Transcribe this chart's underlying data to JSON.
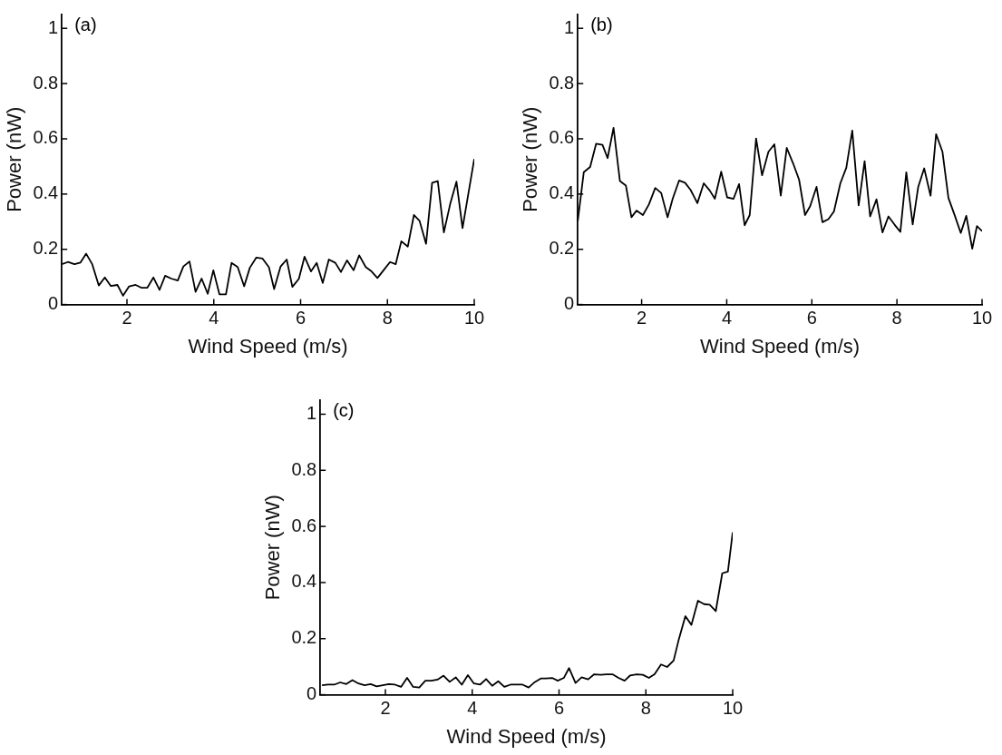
{
  "chart_data": [
    {
      "type": "line",
      "xlabel": "Wind Speed (m/s)",
      "ylabel": "Power (nW)",
      "annotations": [
        "(a)"
      ],
      "color": "#000000",
      "marker": "none",
      "grid": false,
      "legend": false,
      "xlim": [
        0.5,
        10
      ],
      "ylim": [
        0,
        1.05
      ],
      "xticks": [
        2,
        4,
        6,
        8,
        10
      ],
      "yticks": [
        0,
        0.2,
        0.4,
        0.6,
        0.8,
        1
      ],
      "x": [
        0.5,
        0.64,
        0.79,
        0.93,
        1.06,
        1.2,
        1.35,
        1.49,
        1.63,
        1.78,
        1.91,
        2.05,
        2.2,
        2.33,
        2.47,
        2.61,
        2.75,
        2.88,
        3.02,
        3.17,
        3.3,
        3.44,
        3.58,
        3.72,
        3.86,
        3.99,
        4.13,
        4.28,
        4.41,
        4.55,
        4.7,
        4.83,
        4.98,
        5.12,
        5.27,
        5.39,
        5.54,
        5.68,
        5.81,
        5.96,
        6.09,
        6.24,
        6.37,
        6.51,
        6.65,
        6.8,
        6.93,
        7.07,
        7.22,
        7.35,
        7.5,
        7.62,
        7.77,
        7.91,
        8.06,
        8.19,
        8.32,
        8.47,
        8.61,
        8.74,
        8.89,
        9.03,
        9.16,
        9.3,
        9.45,
        9.59,
        9.73,
        10
      ],
      "values": [
        0.146,
        0.154,
        0.146,
        0.152,
        0.184,
        0.146,
        0.069,
        0.098,
        0.067,
        0.071,
        0.032,
        0.066,
        0.071,
        0.061,
        0.061,
        0.098,
        0.053,
        0.104,
        0.094,
        0.087,
        0.138,
        0.156,
        0.046,
        0.094,
        0.039,
        0.124,
        0.037,
        0.037,
        0.151,
        0.136,
        0.066,
        0.133,
        0.17,
        0.167,
        0.135,
        0.056,
        0.138,
        0.163,
        0.064,
        0.093,
        0.173,
        0.12,
        0.151,
        0.078,
        0.163,
        0.151,
        0.118,
        0.16,
        0.124,
        0.178,
        0.136,
        0.122,
        0.096,
        0.124,
        0.154,
        0.146,
        0.229,
        0.21,
        0.324,
        0.303,
        0.22,
        0.441,
        0.447,
        0.261,
        0.367,
        0.445,
        0.277,
        0.527
      ]
    },
    {
      "type": "line",
      "xlabel": "Wind Speed (m/s)",
      "ylabel": "Power (nW)",
      "annotations": [
        "(b)"
      ],
      "color": "#000000",
      "marker": "none",
      "grid": false,
      "legend": false,
      "xlim": [
        0.5,
        10
      ],
      "ylim": [
        0,
        1.05
      ],
      "xticks": [
        2,
        4,
        6,
        8,
        10
      ],
      "yticks": [
        0,
        0.2,
        0.4,
        0.6,
        0.8,
        1
      ],
      "x": [
        0.5,
        0.64,
        0.79,
        0.93,
        1.08,
        1.2,
        1.34,
        1.49,
        1.63,
        1.76,
        1.88,
        2.03,
        2.17,
        2.32,
        2.46,
        2.61,
        2.73,
        2.88,
        3.02,
        3.15,
        3.31,
        3.46,
        3.6,
        3.72,
        3.87,
        4.01,
        4.16,
        4.29,
        4.42,
        4.54,
        4.69,
        4.83,
        4.98,
        5.12,
        5.27,
        5.41,
        5.56,
        5.7,
        5.84,
        5.96,
        6.11,
        6.25,
        6.39,
        6.52,
        6.67,
        6.81,
        6.95,
        7.1,
        7.24,
        7.37,
        7.52,
        7.66,
        7.8,
        7.94,
        8.08,
        8.22,
        8.37,
        8.5,
        8.64,
        8.79,
        8.92,
        9.07,
        9.21,
        9.36,
        9.5,
        9.63,
        9.77,
        9.88,
        10
      ],
      "values": [
        0.303,
        0.479,
        0.498,
        0.582,
        0.578,
        0.53,
        0.64,
        0.447,
        0.431,
        0.316,
        0.34,
        0.324,
        0.362,
        0.422,
        0.404,
        0.316,
        0.383,
        0.449,
        0.441,
        0.415,
        0.367,
        0.439,
        0.413,
        0.383,
        0.481,
        0.388,
        0.383,
        0.436,
        0.287,
        0.324,
        0.601,
        0.468,
        0.553,
        0.58,
        0.394,
        0.567,
        0.511,
        0.452,
        0.324,
        0.356,
        0.426,
        0.298,
        0.309,
        0.337,
        0.439,
        0.495,
        0.63,
        0.359,
        0.519,
        0.319,
        0.381,
        0.261,
        0.319,
        0.29,
        0.263,
        0.479,
        0.29,
        0.426,
        0.493,
        0.394,
        0.617,
        0.553,
        0.386,
        0.322,
        0.259,
        0.321,
        0.202,
        0.284,
        0.266
      ]
    },
    {
      "type": "line",
      "xlabel": "Wind Speed (m/s)",
      "ylabel": "Power (nW)",
      "annotations": [
        "(c)"
      ],
      "color": "#000000",
      "marker": "none",
      "grid": false,
      "legend": false,
      "xlim": [
        0.5,
        10
      ],
      "ylim": [
        0,
        1.05
      ],
      "xticks": [
        2,
        4,
        6,
        8,
        10
      ],
      "yticks": [
        0,
        0.2,
        0.4,
        0.6,
        0.8,
        1
      ],
      "x": [
        0.54,
        0.68,
        0.82,
        0.96,
        1.1,
        1.24,
        1.38,
        1.52,
        1.66,
        1.8,
        1.94,
        2.08,
        2.22,
        2.36,
        2.5,
        2.64,
        2.78,
        2.92,
        3.06,
        3.2,
        3.34,
        3.48,
        3.62,
        3.76,
        3.9,
        4.04,
        4.18,
        4.32,
        4.46,
        4.6,
        4.74,
        4.88,
        5.02,
        5.16,
        5.3,
        5.44,
        5.58,
        5.7,
        5.84,
        5.97,
        6.11,
        6.23,
        6.38,
        6.52,
        6.67,
        6.81,
        6.96,
        7.09,
        7.23,
        7.37,
        7.51,
        7.64,
        7.79,
        7.93,
        8.07,
        8.2,
        8.35,
        8.49,
        8.64,
        8.76,
        8.91,
        9.05,
        9.2,
        9.34,
        9.47,
        9.61,
        9.76,
        9.89,
        10
      ],
      "values": [
        0.034,
        0.036,
        0.036,
        0.044,
        0.038,
        0.052,
        0.04,
        0.034,
        0.038,
        0.03,
        0.034,
        0.038,
        0.036,
        0.028,
        0.06,
        0.028,
        0.026,
        0.05,
        0.05,
        0.054,
        0.068,
        0.046,
        0.062,
        0.036,
        0.07,
        0.04,
        0.036,
        0.056,
        0.032,
        0.048,
        0.028,
        0.036,
        0.036,
        0.036,
        0.026,
        0.045,
        0.058,
        0.058,
        0.06,
        0.05,
        0.06,
        0.095,
        0.042,
        0.062,
        0.055,
        0.073,
        0.071,
        0.073,
        0.073,
        0.06,
        0.05,
        0.069,
        0.073,
        0.071,
        0.06,
        0.073,
        0.108,
        0.099,
        0.122,
        0.198,
        0.28,
        0.249,
        0.335,
        0.323,
        0.321,
        0.298,
        0.433,
        0.439,
        0.579
      ]
    }
  ]
}
